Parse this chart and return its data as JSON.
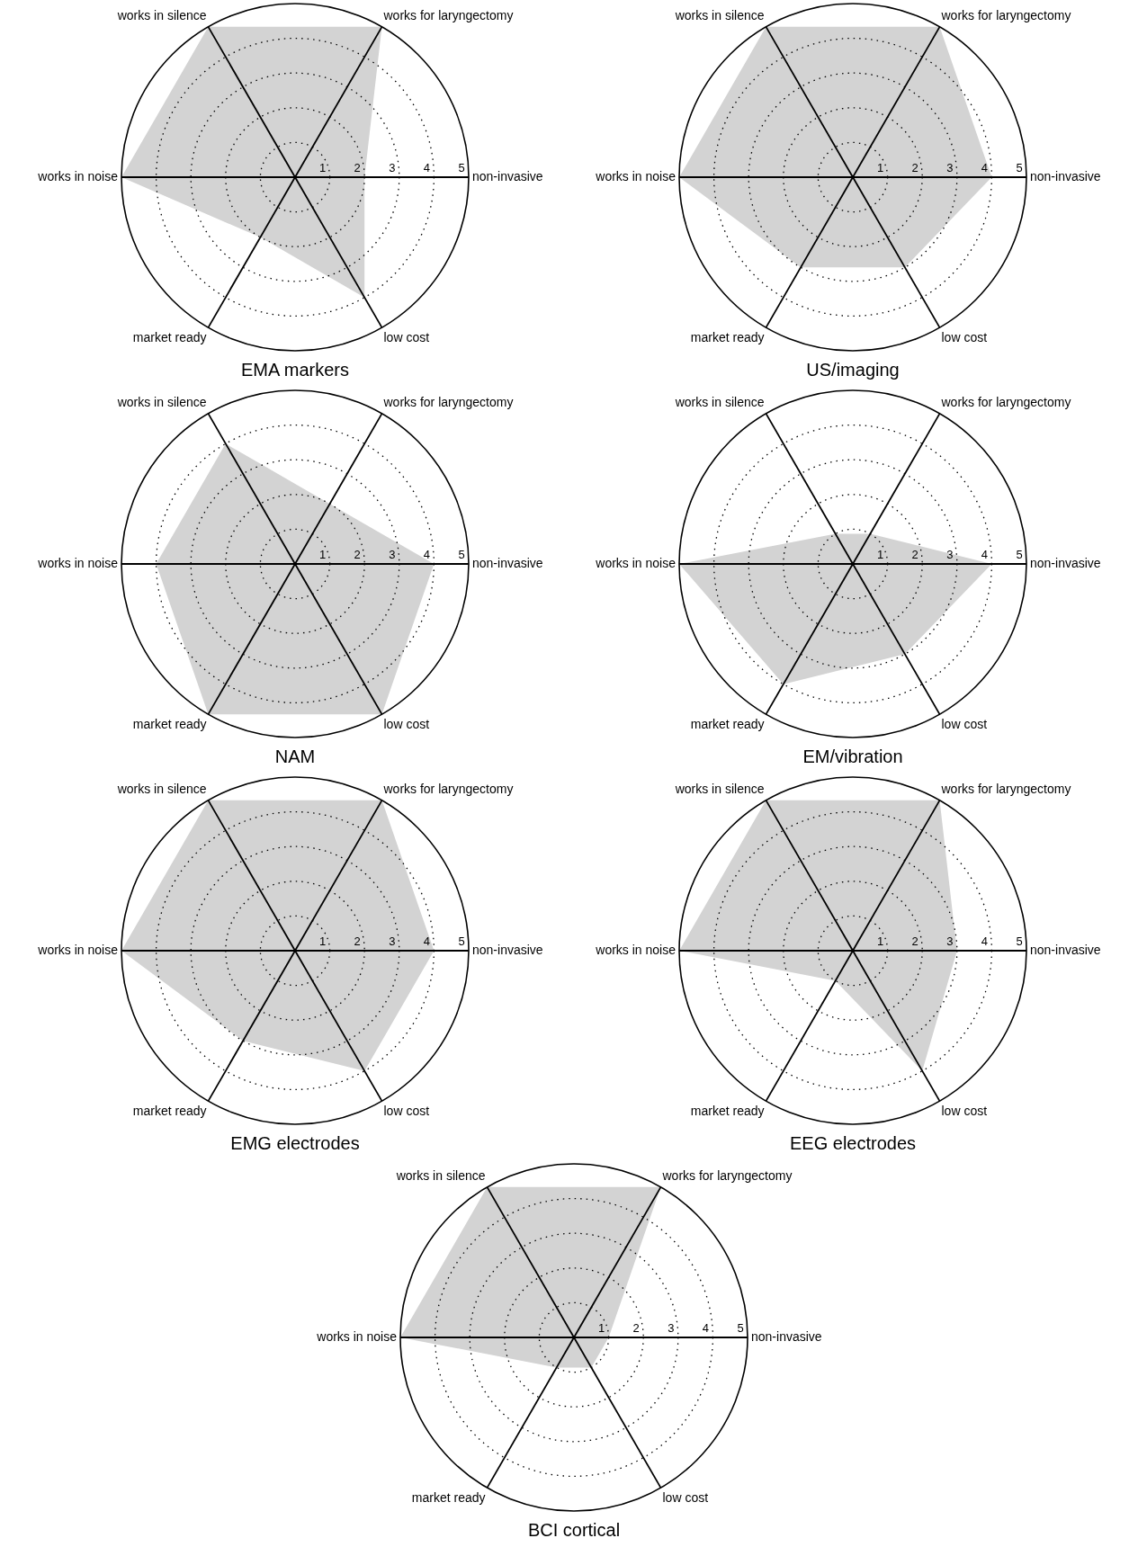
{
  "chart_data": [
    {
      "type": "radar",
      "title": "EMA markers",
      "categories": [
        "works for laryngectomy",
        "non-invasive",
        "low cost",
        "market ready",
        "works in noise",
        "works in silence"
      ],
      "series": [
        {
          "color": "#d3d3d3",
          "values": [
            5,
            2,
            4,
            2,
            5,
            5
          ]
        }
      ],
      "ylim": [
        0,
        5
      ],
      "yticks": [
        1,
        2,
        3,
        4,
        5
      ],
      "grid": true
    },
    {
      "type": "radar",
      "title": "US/imaging",
      "categories": [
        "works for laryngectomy",
        "non-invasive",
        "low cost",
        "market ready",
        "works in noise",
        "works in silence"
      ],
      "series": [
        {
          "color": "#d3d3d3",
          "values": [
            5,
            4,
            3,
            3,
            5,
            5
          ]
        }
      ],
      "ylim": [
        0,
        5
      ],
      "yticks": [
        1,
        2,
        3,
        4,
        5
      ],
      "grid": true
    },
    {
      "type": "radar",
      "title": "NAM",
      "categories": [
        "works for laryngectomy",
        "non-invasive",
        "low cost",
        "market ready",
        "works in noise",
        "works in silence"
      ],
      "series": [
        {
          "color": "#d3d3d3",
          "values": [
            2,
            4,
            5,
            5,
            4,
            4
          ]
        }
      ],
      "ylim": [
        0,
        5
      ],
      "yticks": [
        1,
        2,
        3,
        4,
        5
      ],
      "grid": true
    },
    {
      "type": "radar",
      "title": "EM/vibration",
      "categories": [
        "works for laryngectomy",
        "non-invasive",
        "low cost",
        "market ready",
        "works in noise",
        "works in silence"
      ],
      "series": [
        {
          "color": "#d3d3d3",
          "values": [
            1,
            4,
            3,
            4,
            5,
            1
          ]
        }
      ],
      "ylim": [
        0,
        5
      ],
      "yticks": [
        1,
        2,
        3,
        4,
        5
      ],
      "grid": true
    },
    {
      "type": "radar",
      "title": "EMG electrodes",
      "categories": [
        "works for laryngectomy",
        "non-invasive",
        "low cost",
        "market ready",
        "works in noise",
        "works in silence"
      ],
      "series": [
        {
          "color": "#d3d3d3",
          "values": [
            5,
            4,
            4,
            3,
            5,
            5
          ]
        }
      ],
      "ylim": [
        0,
        5
      ],
      "yticks": [
        1,
        2,
        3,
        4,
        5
      ],
      "grid": true
    },
    {
      "type": "radar",
      "title": "EEG electrodes",
      "categories": [
        "works for laryngectomy",
        "non-invasive",
        "low cost",
        "market ready",
        "works in noise",
        "works in silence"
      ],
      "series": [
        {
          "color": "#d3d3d3",
          "values": [
            5,
            3,
            4,
            1,
            5,
            5
          ]
        }
      ],
      "ylim": [
        0,
        5
      ],
      "yticks": [
        1,
        2,
        3,
        4,
        5
      ],
      "grid": true
    },
    {
      "type": "radar",
      "title": "BCI cortical",
      "categories": [
        "works for laryngectomy",
        "non-invasive",
        "low cost",
        "market ready",
        "works in noise",
        "works in silence"
      ],
      "series": [
        {
          "color": "#d3d3d3",
          "values": [
            5,
            1,
            1,
            1,
            5,
            5
          ]
        }
      ],
      "ylim": [
        0,
        5
      ],
      "yticks": [
        1,
        2,
        3,
        4,
        5
      ],
      "grid": true
    }
  ]
}
